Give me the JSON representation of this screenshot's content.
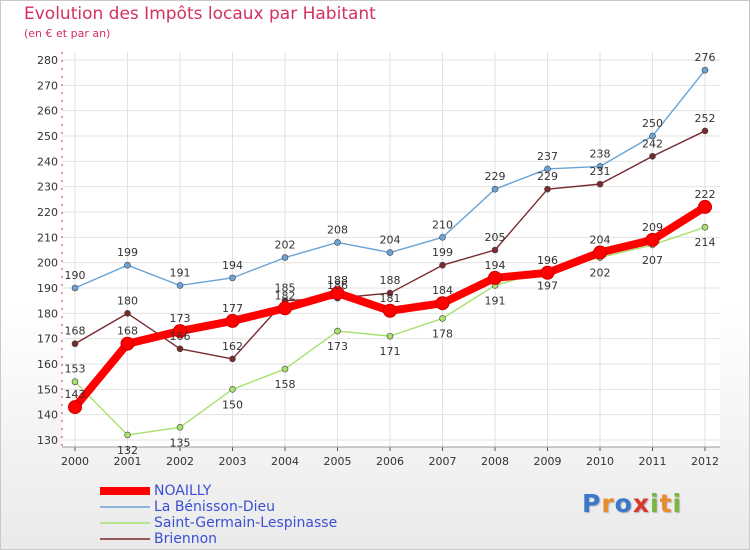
{
  "title": "Evolution des Impôts locaux par Habitant",
  "subtitle": "(en € et par an)",
  "logo": {
    "text": "Proxiti",
    "letters": [
      "P",
      "r",
      "o",
      "x",
      "i",
      "t",
      "i"
    ],
    "colors": [
      "#3a78c9",
      "#e98b2c",
      "#3a78c9",
      "#d83a2f",
      "#7cb342",
      "#e98b2c",
      "#7cb342"
    ]
  },
  "chart_data": {
    "type": "line",
    "title": "Evolution des Impôts locaux par Habitant",
    "ylabel": "(en € et par an)",
    "x": [
      "2000",
      "2001",
      "2002",
      "2003",
      "2004",
      "2005",
      "2006",
      "2007",
      "2008",
      "2009",
      "2010",
      "2011",
      "2012"
    ],
    "ylim": [
      130,
      280
    ],
    "yticks": [
      130,
      140,
      150,
      160,
      170,
      180,
      190,
      200,
      210,
      220,
      230,
      240,
      250,
      260,
      270,
      280
    ],
    "grid": true,
    "legend_position": "bottom-left",
    "series": [
      {
        "name": "NOAILLY",
        "color": "#ff0000",
        "values": [
          143,
          168,
          173,
          177,
          182,
          188,
          181,
          184,
          194,
          196,
          204,
          209,
          222
        ],
        "labels": [
          "143",
          "168",
          "173",
          "177",
          "182",
          "188",
          "181",
          "184",
          "194",
          "196",
          "204",
          "209",
          "222"
        ]
      },
      {
        "name": "La Bénisson-Dieu",
        "color": "#6aa3d5",
        "values": [
          190,
          199,
          191,
          194,
          202,
          208,
          204,
          210,
          229,
          237,
          238,
          250,
          276
        ],
        "labels": [
          "190",
          "199",
          "191",
          "194",
          "202",
          "208",
          "204",
          "210",
          "229",
          "237",
          "238",
          "250",
          "276"
        ]
      },
      {
        "name": "Saint-Germain-Lespinasse",
        "color": "#a8e06e",
        "values": [
          153,
          132,
          135,
          150,
          158,
          173,
          171,
          178,
          191,
          197,
          202,
          207,
          214
        ],
        "labels": [
          "153",
          "132",
          "135",
          "150",
          "158",
          "173",
          "171",
          "178",
          "191",
          "197",
          "202",
          "207",
          "214"
        ]
      },
      {
        "name": "Briennon",
        "color": "#7a2a2e",
        "values": [
          168,
          180,
          166,
          162,
          185,
          186,
          188,
          199,
          205,
          229,
          231,
          242,
          252
        ],
        "labels": [
          "168",
          "180",
          "166",
          "162",
          "185",
          "186",
          "188",
          "199",
          "205",
          "229",
          "231",
          "242",
          "252"
        ]
      }
    ]
  }
}
